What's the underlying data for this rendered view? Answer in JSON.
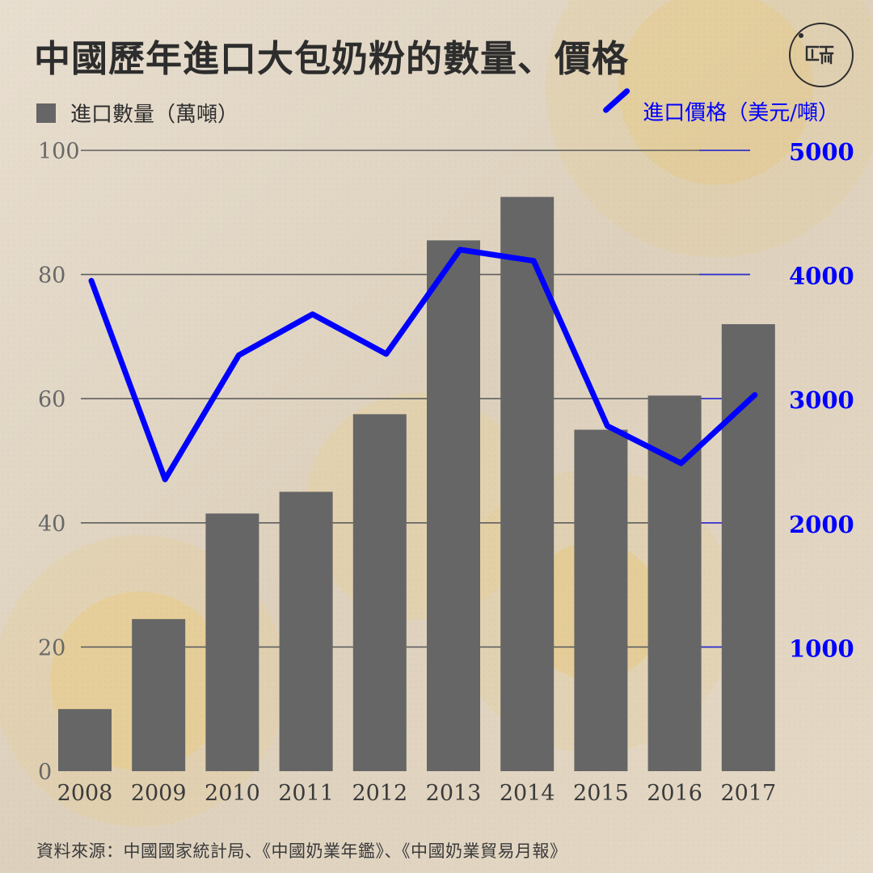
{
  "title": "中國歷年進口大包奶粉的數量、價格",
  "legend": {
    "left_label": "進口數量（萬噸）",
    "right_label": "進口價格（美元/噸）"
  },
  "source": "資料來源：中國國家統計局、《中國奶業年鑑》、《中國奶業貿易月報》",
  "colors": {
    "bar": "#666666",
    "line": "#0000ff",
    "left_grid": "#5f5f5f",
    "right_grid": "#2b2bd6",
    "left_axis_text": "#686868",
    "right_axis_text": "#0000ff",
    "x_axis_text": "#3b3b3b"
  },
  "chart_data": {
    "type": "bar",
    "categories": [
      "2008",
      "2009",
      "2010",
      "2011",
      "2012",
      "2013",
      "2014",
      "2015",
      "2016",
      "2017"
    ],
    "series": [
      {
        "name": "進口數量（萬噸）",
        "type": "bar",
        "axis": "left",
        "values": [
          10,
          24.5,
          41.5,
          45,
          57.5,
          85.5,
          92.5,
          55,
          60.5,
          72
        ]
      },
      {
        "name": "進口價格（美元/噸）",
        "type": "line",
        "axis": "right",
        "values": [
          3950,
          2350,
          3350,
          3680,
          3360,
          4200,
          4110,
          2780,
          2480,
          3030
        ]
      }
    ],
    "title": "中國歷年進口大包奶粉的數量、價格",
    "xlabel": "",
    "ylabel_left": "進口數量（萬噸）",
    "ylabel_right": "進口價格（美元/噸）",
    "ylim_left": [
      0,
      100
    ],
    "ylim_right": [
      0,
      5000
    ],
    "yticks_left": [
      "0",
      "20",
      "40",
      "60",
      "80",
      "100"
    ],
    "yticks_right": [
      "1000",
      "2000",
      "3000",
      "4000",
      "5000"
    ],
    "grid": true,
    "legend_placement": "top"
  }
}
